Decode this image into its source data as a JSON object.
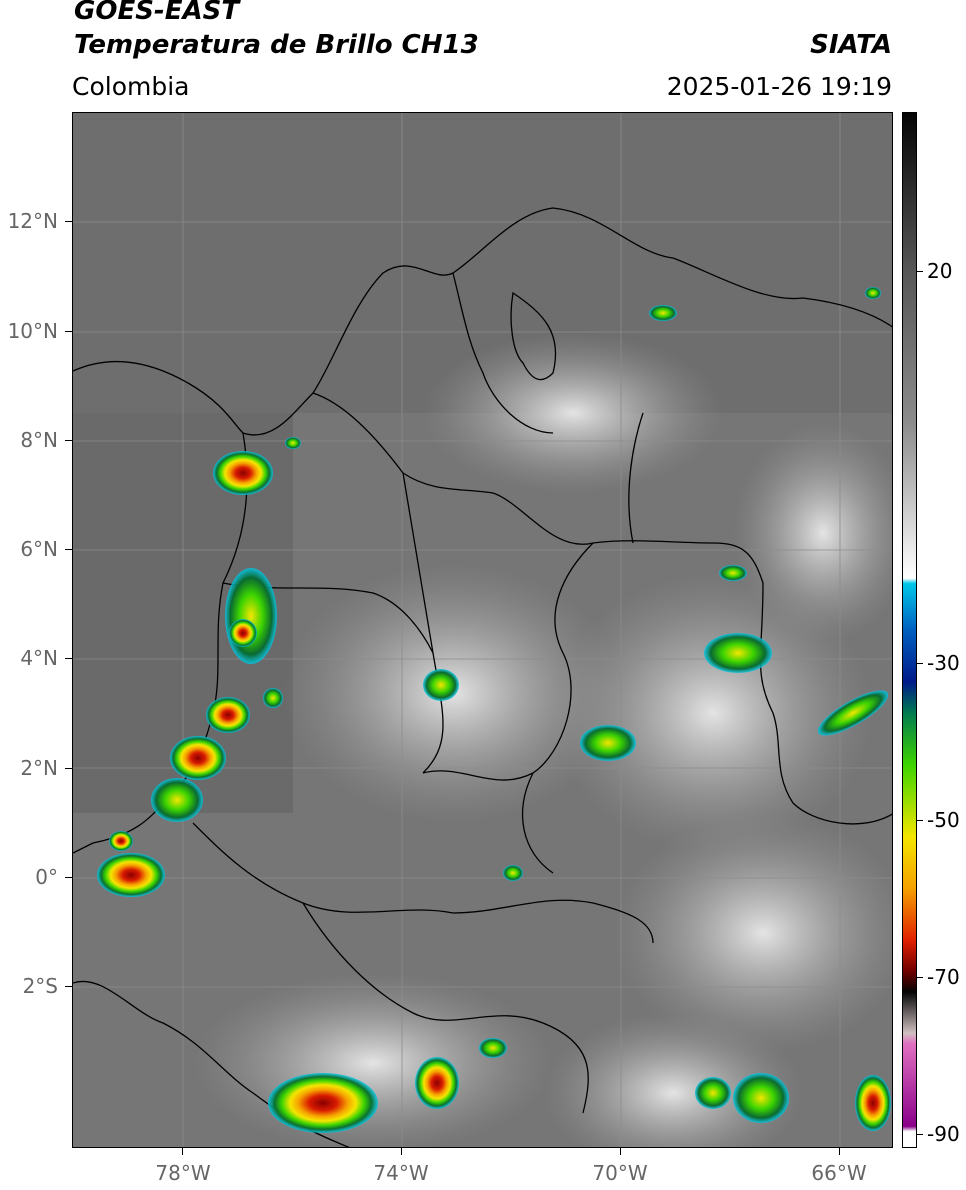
{
  "header": {
    "satellite": "GOES-EAST",
    "product": "Temperatura de Brillo CH13",
    "brand": "SIATA",
    "region": "Colombia",
    "timestamp": "2025-01-26 19:19"
  },
  "map": {
    "lat_labels": [
      "12°N",
      "10°N",
      "8°N",
      "6°N",
      "4°N",
      "2°N",
      "0°",
      "2°S"
    ],
    "lon_labels": [
      "78°W",
      "74°W",
      "70°W",
      "66°W"
    ],
    "extent": {
      "lon_min": -80,
      "lon_max": -65,
      "lat_min": -5,
      "lat_max": 14
    }
  },
  "colorbar": {
    "ticks": [
      "20",
      "-30",
      "-50",
      "-70",
      "-90"
    ],
    "units_range": [
      -92,
      33
    ]
  },
  "colors": {
    "background": "#7a7a7a",
    "cold_red": "#d10000",
    "cold_yellow": "#f4e600",
    "cold_green": "#3cd400",
    "cold_blue": "#0040b0",
    "cyan": "#00c8e8"
  }
}
